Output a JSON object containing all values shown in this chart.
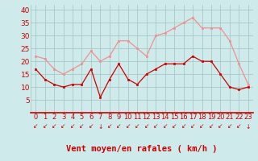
{
  "hours": [
    0,
    1,
    2,
    3,
    4,
    5,
    6,
    7,
    8,
    9,
    10,
    11,
    12,
    13,
    14,
    15,
    16,
    17,
    18,
    19,
    20,
    21,
    22,
    23
  ],
  "wind_mean": [
    17,
    13,
    11,
    10,
    11,
    11,
    17,
    6,
    13,
    19,
    13,
    11,
    15,
    17,
    19,
    19,
    19,
    22,
    20,
    20,
    15,
    10,
    9,
    10
  ],
  "wind_gust": [
    22,
    21,
    17,
    15,
    17,
    19,
    24,
    20,
    22,
    28,
    28,
    25,
    22,
    30,
    31,
    33,
    35,
    37,
    33,
    33,
    33,
    28,
    19,
    11
  ],
  "bg_color": "#ceeaea",
  "grid_color": "#a8c8c8",
  "mean_color": "#cc0000",
  "gust_color": "#f09090",
  "xlabel": "Vent moyen/en rafales ( km/h )",
  "xlabel_color": "#cc0000",
  "tick_color": "#cc0000",
  "arrow_color": "#cc0000",
  "ylim": [
    0,
    42
  ],
  "yticks": [
    5,
    10,
    15,
    20,
    25,
    30,
    35,
    40
  ],
  "ytick_labels": [
    "5",
    "10",
    "15",
    "20",
    "25",
    "30",
    "35",
    "40"
  ],
  "axis_fontsize": 6.5,
  "label_fontsize": 7.5,
  "marker_size": 2.0,
  "line_width": 0.9,
  "arrow_chars": [
    "↙",
    "↙",
    "↙",
    "↙",
    "↙",
    "↙",
    "↙",
    "↓",
    "↙",
    "↙",
    "↙",
    "↙",
    "↙",
    "↙",
    "↙",
    "↙",
    "↙",
    "↙",
    "↙",
    "↙",
    "↙",
    "↙",
    "↙",
    "↓"
  ]
}
